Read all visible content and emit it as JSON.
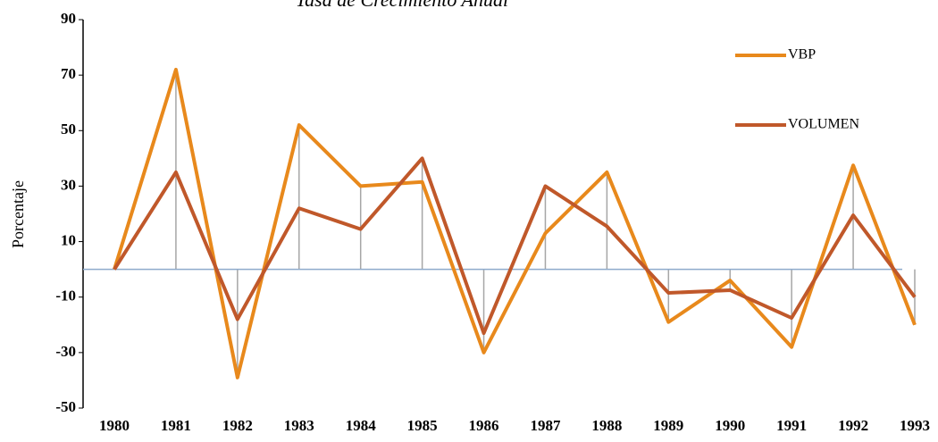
{
  "chart_data": {
    "type": "line",
    "title": "Tasa de Crecimiento Anual",
    "ylabel": "Porcentaje",
    "categories": [
      "1980",
      "1981",
      "1982",
      "1983",
      "1984",
      "1985",
      "1986",
      "1987",
      "1988",
      "1989",
      "1990",
      "1991",
      "1992",
      "1993"
    ],
    "series": [
      {
        "name": "VBP",
        "color": "#e8891c",
        "values": [
          0,
          72,
          -39,
          52,
          30,
          31.5,
          -30,
          13,
          35,
          -19,
          -4,
          -28,
          37.5,
          -20
        ]
      },
      {
        "name": "VOLUMEN",
        "color": "#c0582a",
        "values": [
          0,
          35,
          -18,
          22,
          14.5,
          40,
          -23,
          30,
          15.5,
          -8.5,
          -7.5,
          -17.5,
          19.5,
          -10
        ]
      }
    ],
    "ylim": [
      -50,
      90
    ],
    "yticks": [
      -50,
      -30,
      -10,
      10,
      30,
      50,
      70,
      90
    ],
    "legend": "upper right",
    "drop_lines": true
  }
}
